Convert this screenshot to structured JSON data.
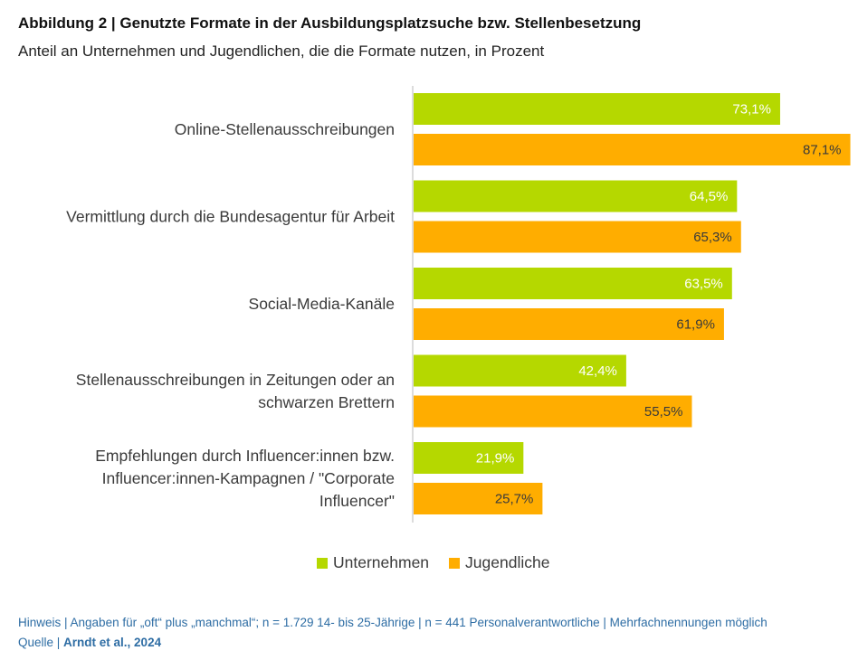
{
  "header": {
    "title": "Abbildung 2 | Genutzte Formate in der Ausbildungsplatzsuche bzw. Stellenbesetzung",
    "subtitle": "Anteil an Unternehmen und Jugendlichen, die die Formate nutzen, in Prozent"
  },
  "chart_data": {
    "type": "bar",
    "orientation": "horizontal",
    "categories": [
      [
        "Online-Stellenausschreibungen"
      ],
      [
        "Vermittlung durch die Bundesagentur für Arbeit"
      ],
      [
        "Social-Media-Kanäle"
      ],
      [
        "Stellenausschreibungen in Zeitungen oder an",
        "schwarzen Brettern"
      ],
      [
        "Empfehlungen durch Influencer:innen bzw.",
        "Influencer:innen-Kampagnen / \"Corporate",
        "Influencer\""
      ]
    ],
    "series": [
      {
        "name": "Unternehmen",
        "color": "#b5d800",
        "label_color": "#ffffff",
        "values": [
          73.1,
          64.5,
          63.5,
          42.4,
          21.9
        ],
        "labels": [
          "73,1%",
          "64,5%",
          "63,5%",
          "42,4%",
          "21,9%"
        ]
      },
      {
        "name": "Jugendliche",
        "color": "#ffad00",
        "label_color": "#3a3a3a",
        "values": [
          87.1,
          65.3,
          61.9,
          55.5,
          25.7
        ],
        "labels": [
          "87,1%",
          "65,3%",
          "61,9%",
          "55,5%",
          "25,7%"
        ]
      }
    ],
    "xlim": [
      0,
      100
    ],
    "grid": false,
    "legend_position": "bottom"
  },
  "footer": {
    "note": "Hinweis | Angaben für „oft“ plus „manchmal“; n = 1.729 14- bis 25-Jährige | n = 441 Personalverantwortliche | Mehrfachnennungen möglich",
    "source_prefix": "Quelle | ",
    "source_bold": "Arndt et al., 2024"
  }
}
